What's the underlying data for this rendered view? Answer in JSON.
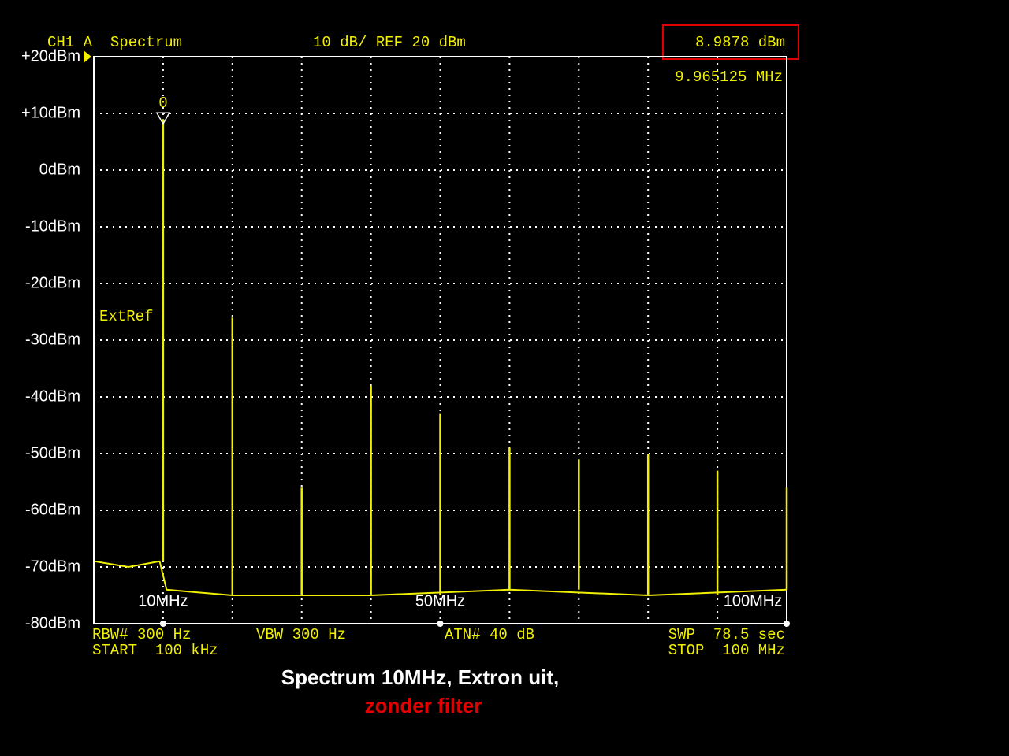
{
  "chart_data": {
    "type": "spectrum",
    "title": "CH1 A  Spectrum",
    "scale_text": "10 dB/ REF 20 dBm",
    "marker": {
      "label": "0",
      "level": "8.9878 dBm",
      "frequency": "9.965125 MHz"
    },
    "annotation": "ExtRef",
    "settings": [
      "RBW# 300 Hz",
      "VBW 300 Hz",
      "ATN# 40 dB",
      "SWP  78.5 sec",
      "START  100 kHz",
      "STOP  100 MHz"
    ],
    "caption": [
      "Spectrum 10MHz, Extron uit,",
      "zonder filter"
    ],
    "xlim": [
      0,
      100
    ],
    "ylim": [
      -80,
      20
    ],
    "yticks": [
      {
        "value": 20,
        "label": "+20dBm"
      },
      {
        "value": 10,
        "label": "+10dBm"
      },
      {
        "value": 0,
        "label": "0dBm"
      },
      {
        "value": -10,
        "label": "-10dBm"
      },
      {
        "value": -20,
        "label": "-20dBm"
      },
      {
        "value": -30,
        "label": "-30dBm"
      },
      {
        "value": -40,
        "label": "-40dBm"
      },
      {
        "value": -50,
        "label": "-50dBm"
      },
      {
        "value": -60,
        "label": "-60dBm"
      },
      {
        "value": -70,
        "label": "-70dBm"
      },
      {
        "value": -80,
        "label": "-80dBm"
      }
    ],
    "xticks": [
      {
        "value": 10,
        "label": "10MHz"
      },
      {
        "value": 20,
        "label": null
      },
      {
        "value": 30,
        "label": null
      },
      {
        "value": 40,
        "label": null
      },
      {
        "value": 50,
        "label": "50MHz"
      },
      {
        "value": 60,
        "label": null
      },
      {
        "value": 70,
        "label": null
      },
      {
        "value": 80,
        "label": null
      },
      {
        "value": 90,
        "label": null
      },
      {
        "value": 100,
        "label": "100MHz"
      }
    ],
    "grid": true,
    "color": "#f0f000",
    "series": [
      {
        "color": "#f0f000",
        "x": [
          10,
          20,
          30,
          40,
          50,
          60,
          70,
          80,
          90,
          100
        ],
        "values": [
          9,
          -26,
          -56,
          -38,
          -43,
          -49,
          -51,
          -50,
          -53,
          -56
        ]
      },
      {
        "color": "#f0f000",
        "x": [
          0.1,
          5,
          9.5,
          10.5,
          20,
          40,
          60,
          80,
          100
        ],
        "values": [
          -69,
          -70,
          -69,
          -74,
          -75,
          -75,
          -74,
          -75,
          -74
        ]
      }
    ]
  }
}
